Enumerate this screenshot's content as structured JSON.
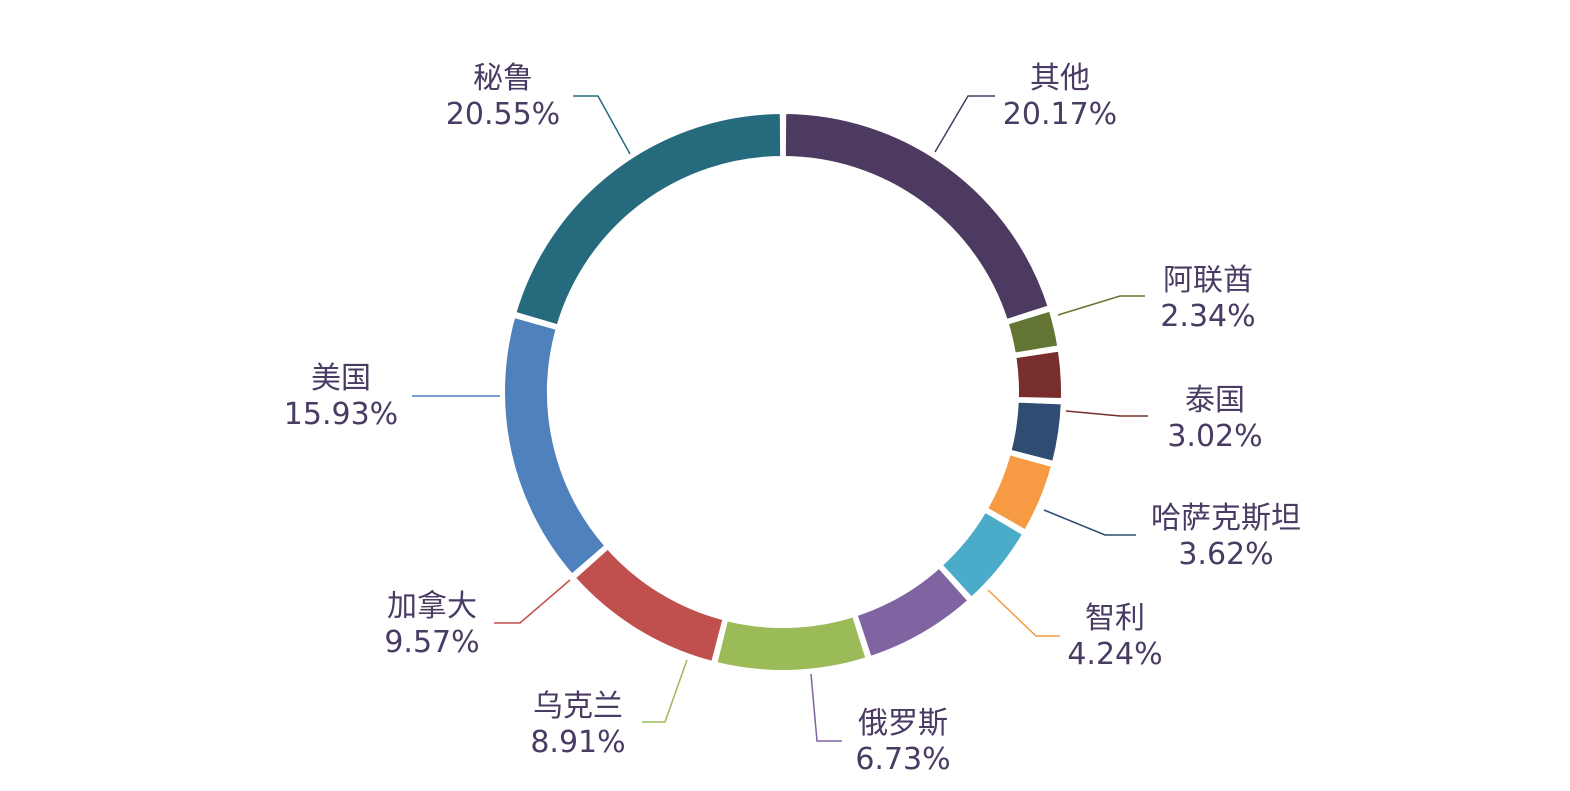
{
  "chart_data": {
    "type": "pie",
    "variant": "donut",
    "title": "",
    "start_angle_deg": 0,
    "direction": "clockwise",
    "label_color": "#4a3b63",
    "slices": [
      {
        "name": "其他",
        "value": 20.17,
        "label": "20.17%",
        "color": "#4d3a61"
      },
      {
        "name": "阿联酋",
        "value": 2.34,
        "label": "2.34%",
        "color": "#637532"
      },
      {
        "name": "泰国",
        "value": 3.02,
        "label": "3.02%",
        "color": "#772e2c"
      },
      {
        "name": "哈萨克斯坦",
        "value": 3.62,
        "label": "3.62%",
        "color": "#2f4d73"
      },
      {
        "name": "智利",
        "value": 4.24,
        "label": "4.24%",
        "color": "#f69b43"
      },
      {
        "name": "",
        "value": 4.93,
        "label": "",
        "color": "#4aacc8"
      },
      {
        "name": "俄罗斯",
        "value": 6.73,
        "label": "6.73%",
        "color": "#8064a2"
      },
      {
        "name": "乌克兰",
        "value": 8.91,
        "label": "8.91%",
        "color": "#9bbb58"
      },
      {
        "name": "加拿大",
        "value": 9.57,
        "label": "9.57%",
        "color": "#c0504d"
      },
      {
        "name": "美国",
        "value": 15.93,
        "label": "15.93%",
        "color": "#4f81bd"
      },
      {
        "name": "秘鲁",
        "value": 20.55,
        "label": "20.55%",
        "color": "#256b7d"
      }
    ]
  }
}
